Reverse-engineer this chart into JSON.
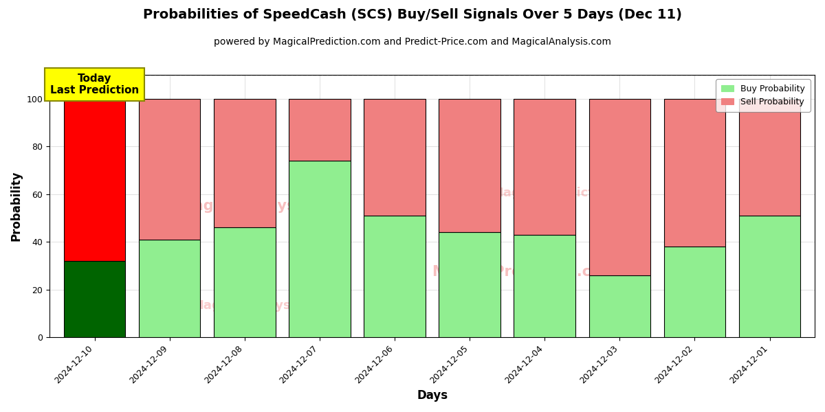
{
  "title": "Probabilities of SpeedCash (SCS) Buy/Sell Signals Over 5 Days (Dec 11)",
  "subtitle": "powered by MagicalPrediction.com and Predict-Price.com and MagicalAnalysis.com",
  "xlabel": "Days",
  "ylabel": "Probability",
  "categories": [
    "2024-12-10",
    "2024-12-09",
    "2024-12-08",
    "2024-12-07",
    "2024-12-06",
    "2024-12-05",
    "2024-12-04",
    "2024-12-03",
    "2024-12-02",
    "2024-12-01"
  ],
  "buy_values": [
    32,
    41,
    46,
    74,
    51,
    44,
    43,
    26,
    38,
    51
  ],
  "sell_values": [
    68,
    59,
    54,
    26,
    49,
    56,
    57,
    74,
    62,
    49
  ],
  "today_buy_color": "#006400",
  "today_sell_color": "#FF0000",
  "buy_color": "#90EE90",
  "sell_color": "#F08080",
  "today_label_bg": "#FFFF00",
  "today_label_text": "Today\nLast Prediction",
  "legend_buy": "Buy Probability",
  "legend_sell": "Sell Probability",
  "ylim": [
    0,
    110
  ],
  "dashed_line_y": 110,
  "bar_edgecolor": "#000000",
  "bar_linewidth": 0.8,
  "background_color": "#ffffff",
  "title_fontsize": 14,
  "subtitle_fontsize": 10,
  "axis_label_fontsize": 12,
  "tick_fontsize": 9,
  "legend_fontsize": 9,
  "bar_width": 0.82
}
